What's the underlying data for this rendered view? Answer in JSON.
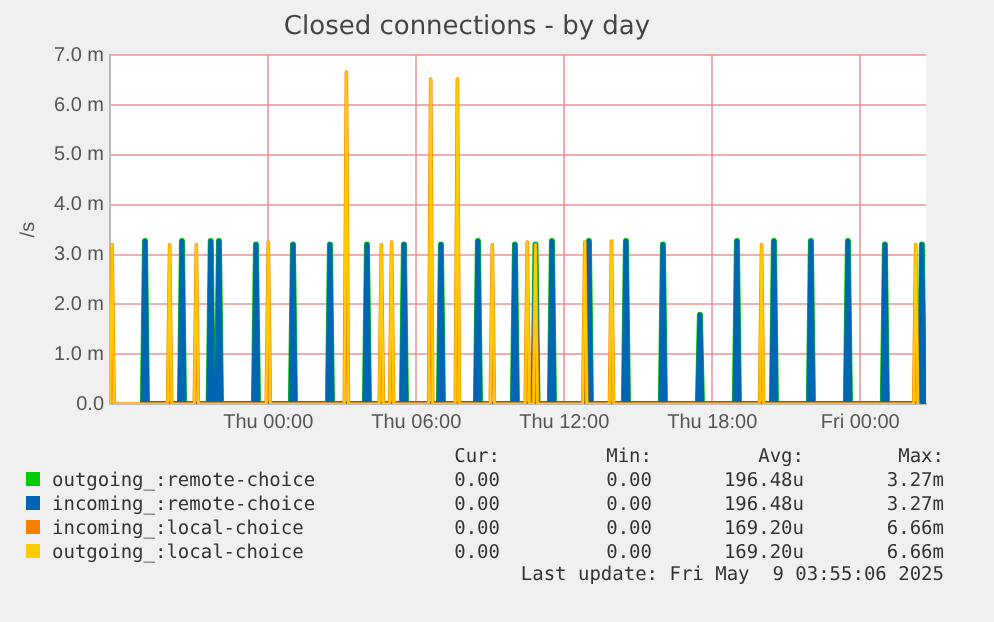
{
  "chart_data": {
    "type": "line",
    "title": "Closed connections - by day",
    "ylabel": "/s",
    "xlim": [
      "2025-05-07T17:35",
      "2025-05-09T02:40"
    ],
    "xticks": [
      {
        "value": "2025-05-08T00:00",
        "label": "Thu 00:00"
      },
      {
        "value": "2025-05-08T06:00",
        "label": "Thu 06:00"
      },
      {
        "value": "2025-05-08T12:00",
        "label": "Thu 12:00"
      },
      {
        "value": "2025-05-08T18:00",
        "label": "Thu 18:00"
      },
      {
        "value": "2025-05-09T00:00",
        "label": "Fri 00:00"
      }
    ],
    "ylim": [
      0,
      7
    ],
    "yticks": [
      {
        "value": 0,
        "label": "0.0"
      },
      {
        "value": 1,
        "label": "1.0 m"
      },
      {
        "value": 2,
        "label": "2.0 m"
      },
      {
        "value": 3,
        "label": "3.0 m"
      },
      {
        "value": 4,
        "label": "4.0 m"
      },
      {
        "value": 5,
        "label": "5.0 m"
      },
      {
        "value": 6,
        "label": "6.0 m"
      },
      {
        "value": 7,
        "label": "7.0 m"
      }
    ],
    "grid": true,
    "legend": "bottom",
    "marker": "none",
    "line_style": "solid",
    "series": [
      {
        "name": "outgoing_:remote-choice",
        "color": "#00cc00",
        "x": [
          "2025-05-07T18:55",
          "2025-05-07T19:00",
          "2025-05-07T19:05",
          "2025-05-07T20:25",
          "2025-05-07T20:30",
          "2025-05-07T20:35",
          "2025-05-07T21:35",
          "2025-05-07T21:40",
          "2025-05-07T21:45",
          "2025-05-07T21:55",
          "2025-05-07T22:00",
          "2025-05-07T22:05",
          "2025-05-07T23:25",
          "2025-05-07T23:30",
          "2025-05-07T23:35",
          "2025-05-08T00:55",
          "2025-05-08T01:00",
          "2025-05-08T01:05",
          "2025-05-08T02:25",
          "2025-05-08T02:30",
          "2025-05-08T02:35",
          "2025-05-08T03:55",
          "2025-05-08T04:00",
          "2025-05-08T04:05",
          "2025-05-08T05:25",
          "2025-05-08T05:30",
          "2025-05-08T05:35",
          "2025-05-08T06:55",
          "2025-05-08T07:00",
          "2025-05-08T07:05",
          "2025-05-08T08:25",
          "2025-05-08T08:30",
          "2025-05-08T08:35",
          "2025-05-08T09:55",
          "2025-05-08T10:00",
          "2025-05-08T10:05",
          "2025-05-08T10:45",
          "2025-05-08T10:50",
          "2025-05-08T10:55",
          "2025-05-08T11:25",
          "2025-05-08T11:30",
          "2025-05-08T11:35",
          "2025-05-08T12:55",
          "2025-05-08T13:00",
          "2025-05-08T13:05",
          "2025-05-08T14:25",
          "2025-05-08T14:30",
          "2025-05-08T14:35",
          "2025-05-08T15:55",
          "2025-05-08T16:00",
          "2025-05-08T16:05",
          "2025-05-08T17:25",
          "2025-05-08T17:30",
          "2025-05-08T17:35",
          "2025-05-08T18:55",
          "2025-05-08T19:00",
          "2025-05-08T19:05",
          "2025-05-08T20:25",
          "2025-05-08T20:30",
          "2025-05-08T20:35",
          "2025-05-08T21:55",
          "2025-05-08T22:00",
          "2025-05-08T22:05",
          "2025-05-08T23:25",
          "2025-05-08T23:30",
          "2025-05-08T23:35",
          "2025-05-09T00:55",
          "2025-05-09T01:00",
          "2025-05-09T01:05",
          "2025-05-09T02:25",
          "2025-05-09T02:30",
          "2025-05-09T02:35"
        ],
        "values": [
          0,
          3.27,
          0,
          0,
          3.27,
          0,
          0,
          3.27,
          0,
          0,
          3.27,
          0,
          0,
          3.2,
          0,
          0,
          3.2,
          0,
          0,
          3.2,
          0,
          0,
          3.2,
          0,
          0,
          3.2,
          0,
          0,
          3.2,
          0,
          0,
          3.27,
          0,
          0,
          3.2,
          0,
          0,
          3.2,
          0,
          0,
          3.27,
          0,
          0,
          3.27,
          0,
          0,
          3.27,
          0,
          0,
          3.2,
          0,
          0,
          1.79,
          0,
          0,
          3.27,
          0,
          0,
          3.27,
          0,
          0,
          3.27,
          0,
          0,
          3.27,
          0,
          0,
          3.2,
          0,
          0,
          3.2,
          0
        ]
      },
      {
        "name": "incoming_:remote-choice",
        "color": "#0066b3",
        "x": [
          "2025-05-07T18:55",
          "2025-05-07T19:00",
          "2025-05-07T19:05",
          "2025-05-07T20:25",
          "2025-05-07T20:30",
          "2025-05-07T20:35",
          "2025-05-07T21:35",
          "2025-05-07T21:40",
          "2025-05-07T21:45",
          "2025-05-07T21:55",
          "2025-05-07T22:00",
          "2025-05-07T22:05",
          "2025-05-07T23:25",
          "2025-05-07T23:30",
          "2025-05-07T23:35",
          "2025-05-08T00:55",
          "2025-05-08T01:00",
          "2025-05-08T01:05",
          "2025-05-08T02:25",
          "2025-05-08T02:30",
          "2025-05-08T02:35",
          "2025-05-08T03:55",
          "2025-05-08T04:00",
          "2025-05-08T04:05",
          "2025-05-08T05:25",
          "2025-05-08T05:30",
          "2025-05-08T05:35",
          "2025-05-08T06:55",
          "2025-05-08T07:00",
          "2025-05-08T07:05",
          "2025-05-08T08:25",
          "2025-05-08T08:30",
          "2025-05-08T08:35",
          "2025-05-08T09:55",
          "2025-05-08T10:00",
          "2025-05-08T10:05",
          "2025-05-08T10:45",
          "2025-05-08T10:50",
          "2025-05-08T10:55",
          "2025-05-08T11:25",
          "2025-05-08T11:30",
          "2025-05-08T11:35",
          "2025-05-08T12:55",
          "2025-05-08T13:00",
          "2025-05-08T13:05",
          "2025-05-08T14:25",
          "2025-05-08T14:30",
          "2025-05-08T14:35",
          "2025-05-08T15:55",
          "2025-05-08T16:00",
          "2025-05-08T16:05",
          "2025-05-08T17:25",
          "2025-05-08T17:30",
          "2025-05-08T17:35",
          "2025-05-08T18:55",
          "2025-05-08T19:00",
          "2025-05-08T19:05",
          "2025-05-08T20:25",
          "2025-05-08T20:30",
          "2025-05-08T20:35",
          "2025-05-08T21:55",
          "2025-05-08T22:00",
          "2025-05-08T22:05",
          "2025-05-08T23:25",
          "2025-05-08T23:30",
          "2025-05-08T23:35",
          "2025-05-09T00:55",
          "2025-05-09T01:00",
          "2025-05-09T01:05",
          "2025-05-09T02:25",
          "2025-05-09T02:30",
          "2025-05-09T02:35"
        ],
        "values": [
          0,
          3.27,
          0,
          0,
          3.27,
          0,
          0,
          3.27,
          0,
          0,
          3.27,
          0,
          0,
          3.2,
          0,
          0,
          3.2,
          0,
          0,
          3.2,
          0,
          0,
          3.2,
          0,
          0,
          3.2,
          0,
          0,
          3.2,
          0,
          0,
          3.27,
          0,
          0,
          3.2,
          0,
          0,
          3.2,
          0,
          0,
          3.27,
          0,
          0,
          3.27,
          0,
          0,
          3.27,
          0,
          0,
          3.2,
          0,
          0,
          1.79,
          0,
          0,
          3.27,
          0,
          0,
          3.27,
          0,
          0,
          3.27,
          0,
          0,
          3.27,
          0,
          0,
          3.2,
          0,
          0,
          3.2,
          0
        ]
      },
      {
        "name": "incoming_:local-choice",
        "color": "#ff8000",
        "x": [
          "2025-05-07T17:35",
          "2025-05-07T17:40",
          "2025-05-07T17:45",
          "2025-05-07T19:55",
          "2025-05-07T20:00",
          "2025-05-07T20:05",
          "2025-05-07T21:00",
          "2025-05-07T21:05",
          "2025-05-07T21:10",
          "2025-05-07T23:55",
          "2025-05-08T00:00",
          "2025-05-08T00:05",
          "2025-05-08T03:05",
          "2025-05-08T03:10",
          "2025-05-08T03:15",
          "2025-05-08T04:30",
          "2025-05-08T04:35",
          "2025-05-08T04:40",
          "2025-05-08T04:55",
          "2025-05-08T05:00",
          "2025-05-08T05:05",
          "2025-05-08T06:30",
          "2025-05-08T06:35",
          "2025-05-08T06:40",
          "2025-05-08T07:35",
          "2025-05-08T07:40",
          "2025-05-08T07:45",
          "2025-05-08T09:00",
          "2025-05-08T09:05",
          "2025-05-08T09:10",
          "2025-05-08T10:25",
          "2025-05-08T10:30",
          "2025-05-08T10:35",
          "2025-05-08T10:45",
          "2025-05-08T10:50",
          "2025-05-08T10:55",
          "2025-05-08T12:45",
          "2025-05-08T12:50",
          "2025-05-08T12:55",
          "2025-05-08T13:50",
          "2025-05-08T13:55",
          "2025-05-08T14:00",
          "2025-05-08T19:55",
          "2025-05-08T20:00",
          "2025-05-08T20:05",
          "2025-05-09T02:10",
          "2025-05-09T02:15",
          "2025-05-09T02:20"
        ],
        "values": [
          0,
          3.2,
          0,
          0,
          3.2,
          0,
          0,
          3.2,
          0,
          0,
          3.25,
          0,
          0,
          6.66,
          0,
          0,
          3.2,
          0,
          0,
          3.25,
          0,
          0,
          6.52,
          0,
          0,
          6.52,
          0,
          0,
          3.2,
          0,
          0,
          3.25,
          0,
          0,
          3.2,
          0,
          0,
          3.25,
          0,
          0,
          3.27,
          0,
          0,
          3.2,
          0,
          0,
          3.2,
          0
        ]
      },
      {
        "name": "outgoing_:local-choice",
        "color": "#ffcc00",
        "x": [
          "2025-05-07T17:35",
          "2025-05-07T17:40",
          "2025-05-07T17:45",
          "2025-05-07T19:55",
          "2025-05-07T20:00",
          "2025-05-07T20:05",
          "2025-05-07T21:00",
          "2025-05-07T21:05",
          "2025-05-07T21:10",
          "2025-05-07T23:55",
          "2025-05-08T00:00",
          "2025-05-08T00:05",
          "2025-05-08T03:05",
          "2025-05-08T03:10",
          "2025-05-08T03:15",
          "2025-05-08T04:30",
          "2025-05-08T04:35",
          "2025-05-08T04:40",
          "2025-05-08T04:55",
          "2025-05-08T05:00",
          "2025-05-08T05:05",
          "2025-05-08T06:30",
          "2025-05-08T06:35",
          "2025-05-08T06:40",
          "2025-05-08T07:35",
          "2025-05-08T07:40",
          "2025-05-08T07:45",
          "2025-05-08T09:00",
          "2025-05-08T09:05",
          "2025-05-08T09:10",
          "2025-05-08T10:25",
          "2025-05-08T10:30",
          "2025-05-08T10:35",
          "2025-05-08T10:45",
          "2025-05-08T10:50",
          "2025-05-08T10:55",
          "2025-05-08T12:45",
          "2025-05-08T12:50",
          "2025-05-08T12:55",
          "2025-05-08T13:50",
          "2025-05-08T13:55",
          "2025-05-08T14:00",
          "2025-05-08T19:55",
          "2025-05-08T20:00",
          "2025-05-08T20:05",
          "2025-05-09T02:10",
          "2025-05-09T02:15",
          "2025-05-09T02:20"
        ],
        "values": [
          0,
          3.2,
          0,
          0,
          3.2,
          0,
          0,
          3.2,
          0,
          0,
          3.25,
          0,
          0,
          6.66,
          0,
          0,
          3.2,
          0,
          0,
          3.25,
          0,
          0,
          6.52,
          0,
          0,
          6.52,
          0,
          0,
          3.2,
          0,
          0,
          3.25,
          0,
          0,
          3.2,
          0,
          0,
          3.25,
          0,
          0,
          3.27,
          0,
          0,
          3.2,
          0,
          0,
          3.2,
          0
        ]
      }
    ],
    "annotations": [
      "Cur:",
      "Min:",
      "Avg:",
      "Max:",
      "0.00",
      "0.00",
      "196.48u",
      "3.27m",
      "0.00",
      "0.00",
      "196.48u",
      "3.27m",
      "0.00",
      "0.00",
      "169.20u",
      "6.66m",
      "0.00",
      "0.00",
      "169.20u",
      "6.66m",
      "Last update: Fri May  9 03:55:06 2025"
    ]
  }
}
